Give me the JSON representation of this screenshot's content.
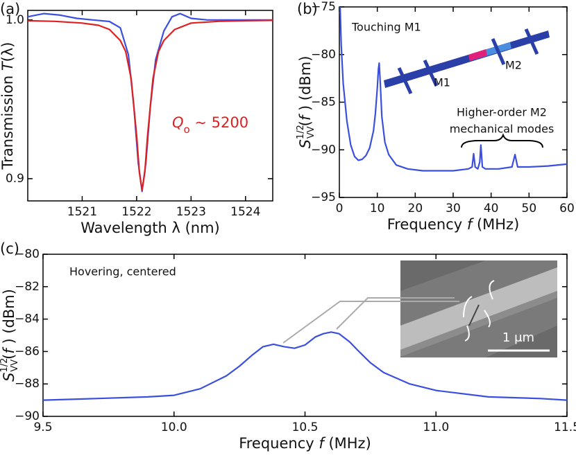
{
  "chart_data": [
    {
      "type": "line",
      "panel": "(a)",
      "xlabel": [
        "Wavelength λ (nm)"
      ],
      "ylabel": [
        "Transmission ",
        "T",
        "(λ)"
      ],
      "xlim": [
        1520,
        1524.5
      ],
      "xticks": [
        1521,
        1522,
        1523,
        1524
      ],
      "ylim": [
        0.886,
        1.006
      ],
      "yticks": [
        0.9,
        {
          "value": 1,
          "label": "1.0"
        }
      ],
      "annotations": [
        [
          "Q",
          "o",
          " ~ 5200"
        ]
      ],
      "series": [
        {
          "color": "#3a4fe0",
          "x": [
            1520,
            1520.3,
            1520.6,
            1520.9,
            1521.2,
            1521.5,
            1521.7,
            1521.85,
            1521.95,
            1522.03,
            1522.1,
            1522.17,
            1522.25,
            1522.35,
            1522.5,
            1522.65,
            1522.8,
            1523,
            1523.3,
            1523.6,
            1524,
            1524.5
          ],
          "values": [
            1.002,
            1.004,
            1.003,
            1.001,
            1.0,
            0.999,
            0.995,
            0.978,
            0.945,
            0.91,
            0.892,
            0.91,
            0.945,
            0.975,
            0.993,
            1.002,
            1.004,
            1.001,
            1.0,
            1.0,
            1.0,
            1.0
          ]
        },
        {
          "color": "#e02020",
          "x": [
            1520,
            1520.5,
            1521,
            1521.3,
            1521.5,
            1521.7,
            1521.8,
            1521.9,
            1522,
            1522.05,
            1522.1,
            1522.15,
            1522.2,
            1522.3,
            1522.4,
            1522.5,
            1522.7,
            1523,
            1523.5,
            1524,
            1524.5
          ],
          "values": [
            0.9995,
            0.9991,
            0.998,
            0.9966,
            0.994,
            0.987,
            0.98,
            0.963,
            0.927,
            0.904,
            0.893,
            0.904,
            0.927,
            0.963,
            0.98,
            0.987,
            0.994,
            0.998,
            0.9991,
            0.9995,
            0.9997
          ]
        }
      ]
    },
    {
      "type": "line",
      "panel": "(b)",
      "xlabel": [
        "Frequency ",
        "f",
        " (MHz)"
      ],
      "ylabel": [
        "S",
        "1/2",
        "VV",
        "(",
        "f",
        " ) (dBm)"
      ],
      "xlim": [
        0,
        60
      ],
      "xticks": [
        0,
        10,
        20,
        30,
        40,
        50,
        60
      ],
      "ylim": [
        -95,
        -75
      ],
      "yticks": [
        {
          "value": -95,
          "label": "−95"
        },
        {
          "value": -90,
          "label": "−90"
        },
        {
          "value": -85,
          "label": "−85"
        },
        {
          "value": -80,
          "label": "−80"
        },
        {
          "value": -75,
          "label": "−75"
        }
      ],
      "annotations": [
        "Touching M1",
        "M1",
        "M2",
        "Higher-order M2",
        "mechanical modes"
      ],
      "series": [
        {
          "color": "#3a4fe0",
          "x": [
            0.2,
            0.5,
            1,
            2,
            3,
            4,
            5,
            6,
            7,
            8,
            9,
            9.5,
            10,
            10.3,
            10.5,
            10.8,
            11.2,
            12,
            13,
            15,
            18,
            22,
            26,
            30,
            34,
            35,
            35.4,
            35.8,
            36.5,
            37,
            37.3,
            37.7,
            38.5,
            42,
            45.5,
            46.3,
            47,
            50,
            55,
            60
          ],
          "values": [
            -75,
            -79,
            -83,
            -87,
            -89.5,
            -90.7,
            -91.1,
            -91,
            -90.6,
            -89.8,
            -88,
            -86.2,
            -83.5,
            -81.5,
            -80.9,
            -83,
            -86.5,
            -89.2,
            -90.5,
            -91.6,
            -92,
            -92.2,
            -92.2,
            -92.2,
            -92,
            -91.8,
            -90.4,
            -91.8,
            -92,
            -91.3,
            -89.5,
            -91.8,
            -92,
            -92,
            -91.8,
            -90.5,
            -91.8,
            -91.8,
            -91.7,
            -91.5
          ]
        }
      ]
    },
    {
      "type": "line",
      "panel": "(c)",
      "xlabel": [
        "Frequency ",
        "f",
        " (MHz)"
      ],
      "ylabel": [
        "S",
        "1/2",
        "VV",
        "(",
        "f",
        " ) (dBm)"
      ],
      "xlim": [
        9.5,
        11.5
      ],
      "xticks": [
        9.5,
        {
          "value": 10,
          "label": "10.0"
        },
        10.5,
        {
          "value": 11,
          "label": "11.0"
        },
        11.5
      ],
      "ylim": [
        -90,
        -80
      ],
      "yticks": [
        {
          "value": -90,
          "label": "−90"
        },
        {
          "value": -88,
          "label": "−88"
        },
        {
          "value": -86,
          "label": "−86"
        },
        {
          "value": -84,
          "label": "−84"
        },
        {
          "value": -82,
          "label": "−82"
        },
        {
          "value": -80,
          "label": "−80"
        }
      ],
      "annotations": [
        "Hovering, centered",
        "1 μm"
      ],
      "series": [
        {
          "color": "#3a4fe0",
          "x": [
            9.5,
            9.7,
            9.9,
            10.0,
            10.1,
            10.2,
            10.25,
            10.3,
            10.34,
            10.38,
            10.42,
            10.46,
            10.5,
            10.54,
            10.57,
            10.6,
            10.63,
            10.67,
            10.7,
            10.75,
            10.8,
            10.9,
            11.0,
            11.2,
            11.4,
            11.5
          ],
          "values": [
            -89,
            -88.9,
            -88.8,
            -88.7,
            -88.3,
            -87.5,
            -86.9,
            -86.2,
            -85.7,
            -85.55,
            -85.7,
            -85.8,
            -85.6,
            -85.1,
            -84.9,
            -84.8,
            -84.9,
            -85.4,
            -85.9,
            -86.7,
            -87.3,
            -88,
            -88.4,
            -88.8,
            -88.9,
            -89
          ]
        }
      ]
    }
  ]
}
